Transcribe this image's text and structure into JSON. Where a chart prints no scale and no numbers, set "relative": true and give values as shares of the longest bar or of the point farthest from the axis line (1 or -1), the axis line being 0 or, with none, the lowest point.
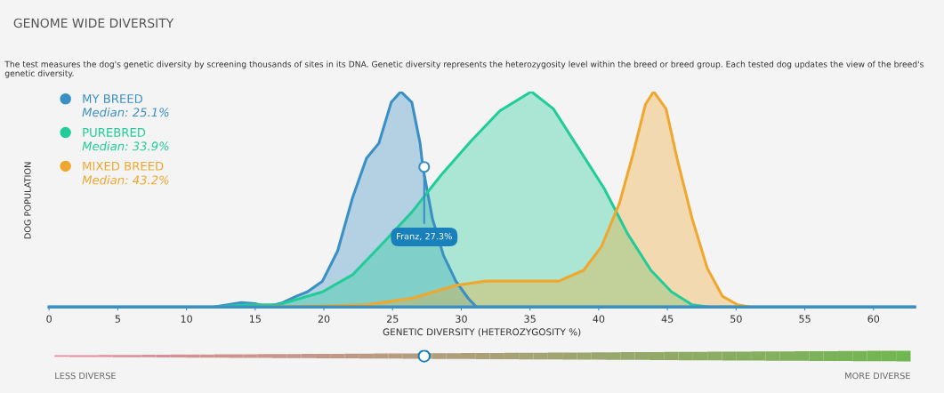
{
  "chart_data": {
    "type": "area",
    "title": "GENOME WIDE DIVERSITY",
    "subtitle": "The test measures the dog's genetic diversity by screening thousands of sites in its DNA. Genetic diversity represents the heterozygosity level within the breed or breed group. Each tested dog updates the view of the breed's genetic diversity.",
    "xlabel": "GENETIC DIVERSITY (HETEROZYGOSITY %)",
    "ylabel": "DOG POPULATION",
    "relative": true,
    "xlim": [
      0,
      63
    ],
    "xticks": [
      0,
      5,
      10,
      15,
      20,
      25,
      30,
      35,
      40,
      45,
      50,
      55,
      60
    ],
    "legend": "top left",
    "grid": false,
    "series": [
      {
        "name": "MY BREED",
        "color": "#3a8fc4",
        "x": [
          0,
          12,
          13,
          14,
          15,
          15.8,
          17,
          18,
          18.8,
          19.9,
          21,
          22.1,
          23.1,
          24.0,
          24.9,
          25.6,
          26.4,
          27.0,
          27.2,
          27.9,
          28.7,
          29.6,
          30.5,
          31.1,
          63
        ],
        "values": [
          0,
          0,
          0.01,
          0.02,
          0.015,
          0,
          0.02,
          0.05,
          0.07,
          0.12,
          0.26,
          0.51,
          0.69,
          0.76,
          0.95,
          1.0,
          0.95,
          0.76,
          0.65,
          0.41,
          0.24,
          0.12,
          0.04,
          0,
          0
        ]
      },
      {
        "name": "PUREBRED",
        "color": "#22cc98",
        "x": [
          12,
          14.5,
          16.7,
          19.9,
          22.1,
          24.2,
          26.4,
          28.5,
          30.7,
          32.8,
          35.1,
          36.7,
          38.6,
          40.4,
          42.1,
          43.8,
          45.3,
          46.8,
          48
        ],
        "values": [
          0,
          0.01,
          0.01,
          0.07,
          0.15,
          0.29,
          0.44,
          0.61,
          0.77,
          0.91,
          1.0,
          0.92,
          0.73,
          0.55,
          0.34,
          0.17,
          0.07,
          0.01,
          0
        ]
      },
      {
        "name": "MIXED BREED",
        "color": "#efa72e",
        "x": [
          14.5,
          20,
          23.1,
          26.4,
          29.6,
          31.8,
          37.1,
          38.9,
          40.2,
          41.5,
          42.5,
          43.4,
          44.0,
          44.9,
          45.7,
          46.8,
          47.9,
          49.0,
          50.1,
          51
        ],
        "values": [
          0,
          0.005,
          0.01,
          0.04,
          0.1,
          0.12,
          0.12,
          0.17,
          0.28,
          0.48,
          0.71,
          0.94,
          1.0,
          0.92,
          0.69,
          0.41,
          0.18,
          0.05,
          0.01,
          0
        ]
      }
    ],
    "annotations": [
      "Median: 25.1%",
      "Median: 33.9%",
      "Median: 43.2%",
      {
        "text": "Franz, 27.3%",
        "x": 27.3,
        "y": 0.65
      },
      "LESS DIVERSE",
      "MORE DIVERSE"
    ]
  }
}
